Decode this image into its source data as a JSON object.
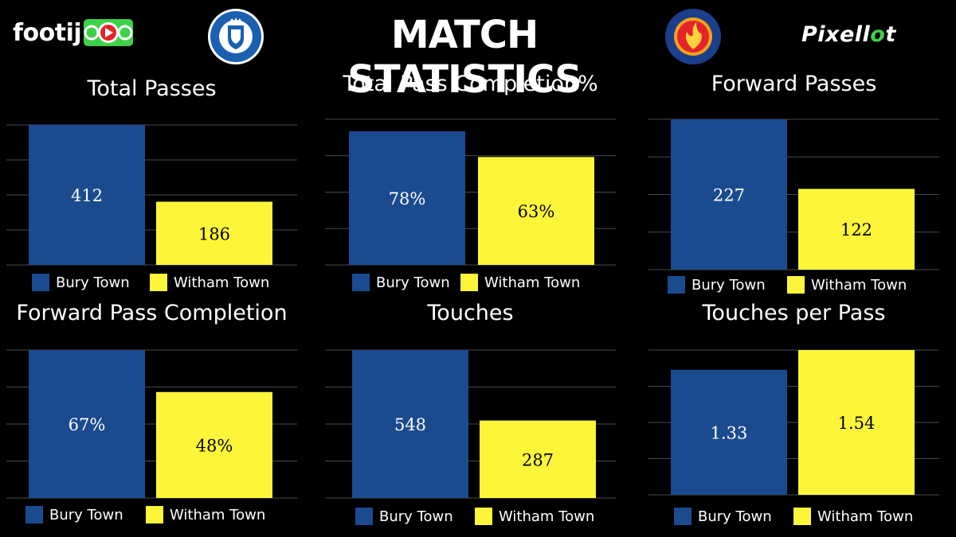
{
  "header": {
    "title": "MATCH STATISTICS",
    "brand_left": "footij",
    "brand_right_prefix": "Pixell",
    "brand_right_o": "o",
    "brand_right_suffix": "t",
    "home_crest_text": "BURY TOWN FOOTBALL CLUB",
    "away_crest_text": "WITHAM TOWN FOOTBALL CLUB"
  },
  "colors": {
    "home": "#1b4b8f",
    "away": "#fdf53a",
    "grid": "#4a4a4a",
    "brand_green": "#3fd14a",
    "brand_red": "#e5232a"
  },
  "legend": {
    "home": "Bury Town",
    "away": "Witham Town"
  },
  "chart_data": [
    {
      "type": "bar",
      "title": "Total Passes",
      "categories": [
        "Bury Town",
        "Witham Town"
      ],
      "values": [
        412,
        186
      ],
      "labels": [
        "412",
        "186"
      ],
      "ylim": [
        0,
        412
      ]
    },
    {
      "type": "bar",
      "title": "Total Pass Completion%",
      "categories": [
        "Bury Town",
        "Witham Town"
      ],
      "values": [
        78,
        63
      ],
      "labels": [
        "78%",
        "63%"
      ],
      "ylim": [
        0,
        85
      ]
    },
    {
      "type": "bar",
      "title": "Forward Passes",
      "categories": [
        "Bury Town",
        "Witham Town"
      ],
      "values": [
        227,
        122
      ],
      "labels": [
        "227",
        "122"
      ],
      "ylim": [
        0,
        227
      ]
    },
    {
      "type": "bar",
      "title": "Forward Pass Completion",
      "categories": [
        "Bury Town",
        "Witham Town"
      ],
      "values": [
        67,
        48
      ],
      "labels": [
        "67%",
        "48%"
      ],
      "ylim": [
        0,
        67
      ]
    },
    {
      "type": "bar",
      "title": "Touches",
      "categories": [
        "Bury Town",
        "Witham Town"
      ],
      "values": [
        548,
        287
      ],
      "labels": [
        "548",
        "287"
      ],
      "ylim": [
        0,
        548
      ]
    },
    {
      "type": "bar",
      "title": "Touches per Pass",
      "categories": [
        "Bury Town",
        "Witham Town"
      ],
      "values": [
        1.33,
        1.54
      ],
      "labels": [
        "1.33",
        "1.54"
      ],
      "ylim": [
        0,
        1.54
      ]
    }
  ]
}
